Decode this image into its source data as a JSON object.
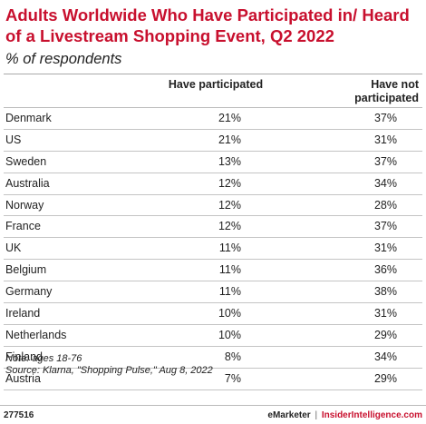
{
  "title": "Adults Worldwide Who Have Participated in/ Heard of a Livestream Shopping Event, Q2 2022",
  "subtitle": "% of respondents",
  "chart_data": {
    "type": "table",
    "columns": [
      "",
      "Have participated",
      "Have not participated"
    ],
    "rows": [
      {
        "country": "Denmark",
        "participated": "21%",
        "not_participated": "37%"
      },
      {
        "country": "US",
        "participated": "21%",
        "not_participated": "31%"
      },
      {
        "country": "Sweden",
        "participated": "13%",
        "not_participated": "37%"
      },
      {
        "country": "Australia",
        "participated": "12%",
        "not_participated": "34%"
      },
      {
        "country": "Norway",
        "participated": "12%",
        "not_participated": "28%"
      },
      {
        "country": "France",
        "participated": "12%",
        "not_participated": "37%"
      },
      {
        "country": "UK",
        "participated": "11%",
        "not_participated": "31%"
      },
      {
        "country": "Belgium",
        "participated": "11%",
        "not_participated": "36%"
      },
      {
        "country": "Germany",
        "participated": "11%",
        "not_participated": "38%"
      },
      {
        "country": "Ireland",
        "participated": "10%",
        "not_participated": "31%"
      },
      {
        "country": "Netherlands",
        "participated": "10%",
        "not_participated": "29%"
      },
      {
        "country": "Finland",
        "participated": "8%",
        "not_participated": "34%"
      },
      {
        "country": "Austria",
        "participated": "7%",
        "not_participated": "29%"
      }
    ]
  },
  "notes": {
    "note": "Note: ages 18-76",
    "source": "Source: Klarna, \"Shopping Pulse,\" Aug 8, 2022"
  },
  "footer": {
    "chart_id": "277516",
    "brand": "eMarketer",
    "separator": "|",
    "site": "InsiderIntelligence.com"
  },
  "colors": {
    "title": "#c8102e",
    "site": "#c8102e"
  }
}
